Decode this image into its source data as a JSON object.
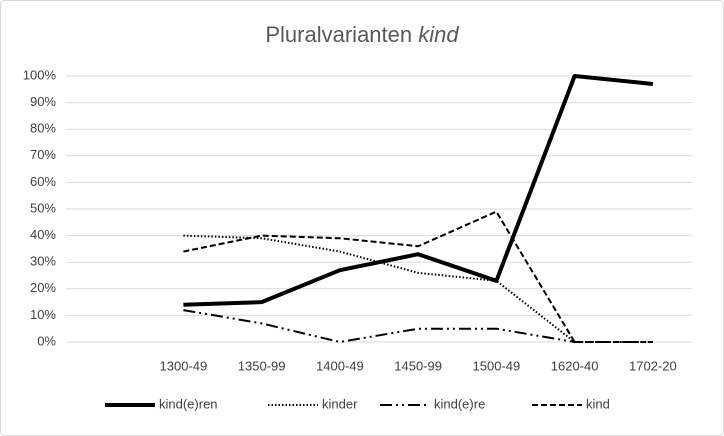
{
  "chart_data": {
    "type": "line",
    "title": [
      "Pluralvarianten",
      "kind"
    ],
    "categories": [
      null,
      "1300-49",
      "1350-99",
      "1400-49",
      "1450-99",
      "1500-49",
      "1620-40",
      "1702-20"
    ],
    "series": [
      {
        "name": "kind(e)ren",
        "color": "#000000",
        "style": "solid",
        "values": [
          null,
          14,
          15,
          27,
          33,
          23,
          100,
          97
        ]
      },
      {
        "name": "kinder",
        "color": "#000000",
        "style": "dotted",
        "values": [
          null,
          40,
          39,
          34,
          26,
          23,
          0,
          0
        ]
      },
      {
        "name": "kind(e)re",
        "color": "#000000",
        "style": "dash-dot-dot",
        "values": [
          null,
          12,
          7,
          0,
          5,
          5,
          0,
          0
        ]
      },
      {
        "name": "kind",
        "color": "#000000",
        "style": "dashed",
        "values": [
          null,
          34,
          40,
          39,
          36,
          49,
          0,
          0
        ]
      }
    ],
    "ylim": [
      0,
      100
    ],
    "yticks": [
      {
        "value": 0,
        "label": "0%"
      },
      {
        "value": 10,
        "label": "10%"
      },
      {
        "value": 20,
        "label": "20%"
      },
      {
        "value": 30,
        "label": "30%"
      },
      {
        "value": 40,
        "label": "40%"
      },
      {
        "value": 50,
        "label": "50%"
      },
      {
        "value": 60,
        "label": "60%"
      },
      {
        "value": 70,
        "label": "70%"
      },
      {
        "value": 80,
        "label": "80%"
      },
      {
        "value": 90,
        "label": "90%"
      },
      {
        "value": 100,
        "label": "100%"
      }
    ],
    "grid": true,
    "legend": "bottom"
  }
}
